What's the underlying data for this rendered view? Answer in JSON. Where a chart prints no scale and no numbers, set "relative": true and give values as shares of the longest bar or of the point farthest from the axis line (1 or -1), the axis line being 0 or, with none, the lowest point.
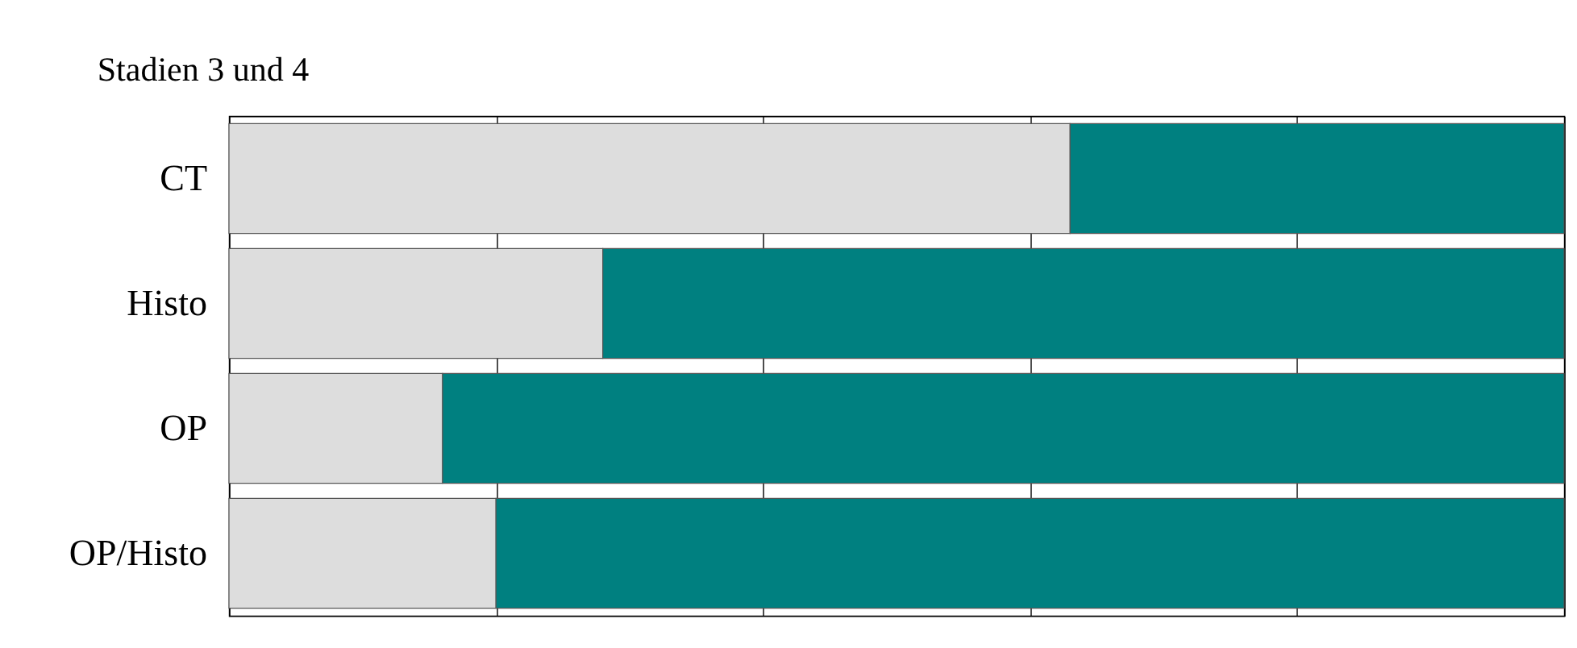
{
  "chart_data": {
    "type": "bar",
    "title": "Stadien 3 und 4",
    "orientation": "horizontal",
    "stacked": true,
    "relative": true,
    "grid": "x",
    "categories": [
      "CT",
      "Histo",
      "OP",
      "OP/Histo"
    ],
    "series": [
      {
        "color": "#dddddd",
        "values": [
          0.63,
          0.28,
          0.16,
          0.2
        ]
      },
      {
        "color": "#008080",
        "values": [
          0.37,
          0.72,
          0.84,
          0.8
        ]
      }
    ]
  }
}
